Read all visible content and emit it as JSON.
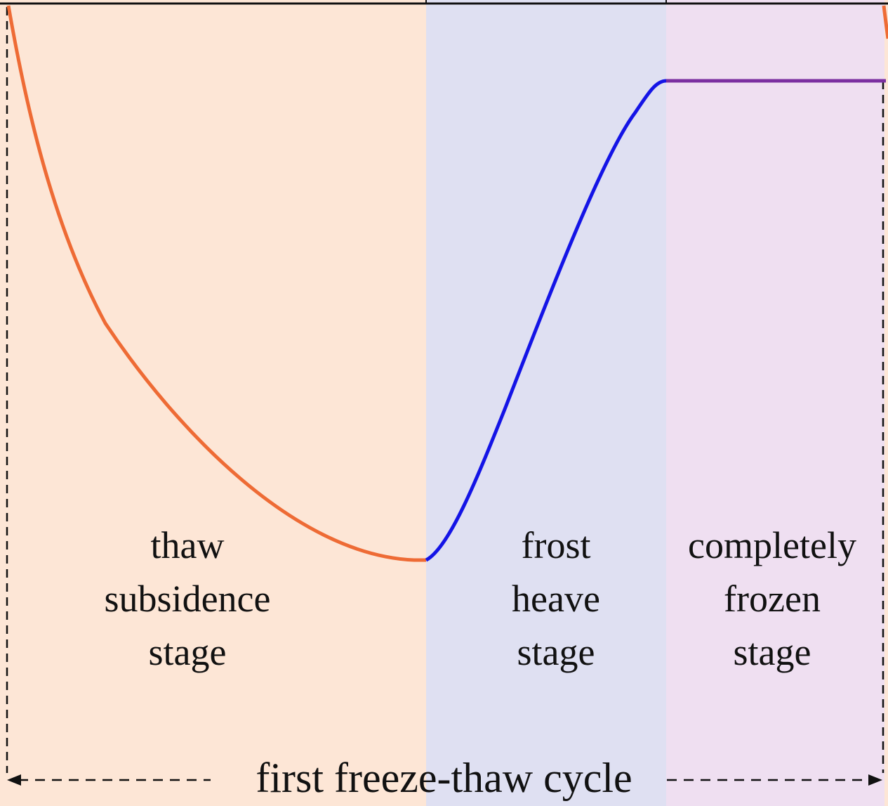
{
  "stages": [
    {
      "id": "thaw",
      "lines": [
        "thaw",
        "subsidence",
        "stage"
      ],
      "color": "#fde6d6"
    },
    {
      "id": "heave",
      "lines": [
        "frost",
        "heave",
        "stage"
      ],
      "color": "#dfe0f2"
    },
    {
      "id": "frozen",
      "lines": [
        "completely",
        "frozen",
        "stage"
      ],
      "color": "#efdff1"
    }
  ],
  "cycle_label": "first freeze-thaw cycle",
  "curve_colors": {
    "thaw": "#ee6b35",
    "heave": "#1414e6",
    "frozen": "#7b2fa0"
  }
}
